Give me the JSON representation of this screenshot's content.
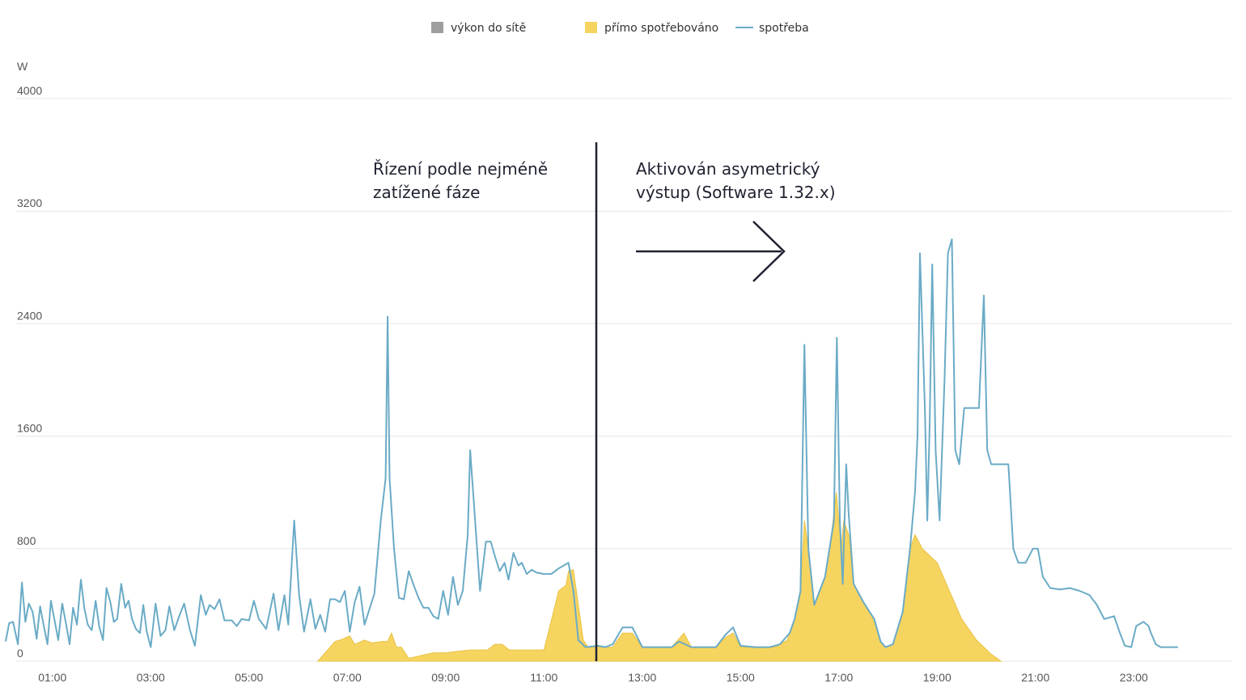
{
  "chart_data": {
    "type": "area",
    "ylabel": "W",
    "ylim": [
      0,
      4000
    ],
    "yticks": [
      0,
      800,
      1600,
      2400,
      3200,
      4000
    ],
    "xlim": [
      0,
      24
    ],
    "xticks": [
      "01:00",
      "03:00",
      "05:00",
      "07:00",
      "09:00",
      "11:00",
      "13:00",
      "15:00",
      "17:00",
      "19:00",
      "21:00",
      "23:00"
    ],
    "grid": true,
    "legend_position": "top-center",
    "legend": [
      {
        "label": "výkon do sítě",
        "marker": "square",
        "color": "#9e9e9e"
      },
      {
        "label": "přímo spotřebováno",
        "marker": "square",
        "color": "#f6d460"
      },
      {
        "label": "spotřeba",
        "marker": "line",
        "color": "#6aabc6"
      }
    ],
    "divider_x": 11.0,
    "annotations": {
      "left": [
        "Řízení podle nejméně",
        "zatížené fáze"
      ],
      "right": [
        "Aktivován asymetrický",
        "výstup (Software 1.32.x)"
      ]
    },
    "series": [
      {
        "name": "spotřeba",
        "kind": "line",
        "color": "#6aabc6",
        "points": [
          [
            0.05,
            140
          ],
          [
            0.12,
            270
          ],
          [
            0.2,
            280
          ],
          [
            0.3,
            120
          ],
          [
            0.38,
            560
          ],
          [
            0.45,
            280
          ],
          [
            0.52,
            410
          ],
          [
            0.6,
            350
          ],
          [
            0.68,
            160
          ],
          [
            0.75,
            390
          ],
          [
            0.82,
            260
          ],
          [
            0.9,
            120
          ],
          [
            0.97,
            430
          ],
          [
            1.05,
            280
          ],
          [
            1.12,
            150
          ],
          [
            1.2,
            410
          ],
          [
            1.28,
            260
          ],
          [
            1.35,
            120
          ],
          [
            1.42,
            380
          ],
          [
            1.5,
            260
          ],
          [
            1.58,
            580
          ],
          [
            1.65,
            380
          ],
          [
            1.72,
            260
          ],
          [
            1.8,
            220
          ],
          [
            1.88,
            430
          ],
          [
            1.95,
            250
          ],
          [
            2.03,
            150
          ],
          [
            2.1,
            520
          ],
          [
            2.18,
            420
          ],
          [
            2.25,
            280
          ],
          [
            2.32,
            300
          ],
          [
            2.4,
            550
          ],
          [
            2.48,
            380
          ],
          [
            2.55,
            430
          ],
          [
            2.62,
            300
          ],
          [
            2.7,
            230
          ],
          [
            2.78,
            200
          ],
          [
            2.85,
            400
          ],
          [
            2.92,
            210
          ],
          [
            3,
            100
          ],
          [
            3.1,
            410
          ],
          [
            3.2,
            180
          ],
          [
            3.3,
            220
          ],
          [
            3.38,
            390
          ],
          [
            3.48,
            220
          ],
          [
            3.58,
            320
          ],
          [
            3.68,
            410
          ],
          [
            3.8,
            220
          ],
          [
            3.9,
            110
          ],
          [
            4.02,
            470
          ],
          [
            4.12,
            330
          ],
          [
            4.2,
            400
          ],
          [
            4.3,
            370
          ],
          [
            4.4,
            440
          ],
          [
            4.5,
            290
          ],
          [
            4.65,
            290
          ],
          [
            4.75,
            250
          ],
          [
            4.85,
            300
          ],
          [
            5,
            290
          ],
          [
            5.1,
            430
          ],
          [
            5.2,
            300
          ],
          [
            5.35,
            230
          ],
          [
            5.5,
            480
          ],
          [
            5.6,
            220
          ],
          [
            5.72,
            470
          ],
          [
            5.8,
            260
          ],
          [
            5.92,
            1000
          ],
          [
            6.02,
            470
          ],
          [
            6.12,
            210
          ],
          [
            6.25,
            440
          ],
          [
            6.35,
            230
          ],
          [
            6.45,
            330
          ],
          [
            6.55,
            210
          ],
          [
            6.65,
            440
          ],
          [
            6.75,
            440
          ],
          [
            6.85,
            420
          ],
          [
            6.95,
            500
          ],
          [
            7.05,
            210
          ],
          [
            7.15,
            420
          ],
          [
            7.25,
            530
          ],
          [
            7.35,
            260
          ],
          [
            7.55,
            480
          ],
          [
            7.68,
            1000
          ],
          [
            7.78,
            1300
          ],
          [
            7.82,
            2450
          ],
          [
            7.86,
            1300
          ],
          [
            7.95,
            800
          ],
          [
            8.05,
            450
          ],
          [
            8.15,
            440
          ],
          [
            8.25,
            640
          ],
          [
            8.35,
            540
          ],
          [
            8.45,
            450
          ],
          [
            8.55,
            380
          ],
          [
            8.65,
            380
          ],
          [
            8.75,
            320
          ],
          [
            8.85,
            300
          ],
          [
            8.95,
            500
          ],
          [
            9.05,
            330
          ],
          [
            9.15,
            600
          ],
          [
            9.25,
            400
          ],
          [
            9.35,
            500
          ],
          [
            9.45,
            900
          ],
          [
            9.5,
            1500
          ],
          [
            9.58,
            1100
          ],
          [
            9.7,
            500
          ],
          [
            9.82,
            850
          ],
          [
            9.92,
            850
          ],
          [
            10,
            750
          ],
          [
            10.1,
            640
          ],
          [
            10.2,
            700
          ],
          [
            10.28,
            580
          ],
          [
            10.38,
            770
          ],
          [
            10.48,
            680
          ],
          [
            10.55,
            700
          ],
          [
            10.65,
            620
          ],
          [
            10.75,
            650
          ],
          [
            10.85,
            630
          ],
          [
            11,
            620
          ],
          [
            11.15,
            620
          ],
          [
            11.3,
            660
          ],
          [
            11.5,
            700
          ],
          [
            11.6,
            500
          ],
          [
            11.7,
            150
          ],
          [
            11.85,
            100
          ],
          [
            12.1,
            110
          ],
          [
            12.25,
            100
          ],
          [
            12.4,
            120
          ],
          [
            12.6,
            240
          ],
          [
            12.8,
            240
          ],
          [
            13,
            100
          ],
          [
            13.3,
            100
          ],
          [
            13.6,
            100
          ],
          [
            13.75,
            140
          ],
          [
            14,
            100
          ],
          [
            14.3,
            100
          ],
          [
            14.5,
            100
          ],
          [
            14.7,
            190
          ],
          [
            14.85,
            240
          ],
          [
            15,
            110
          ],
          [
            15.3,
            100
          ],
          [
            15.6,
            100
          ],
          [
            15.8,
            120
          ],
          [
            16,
            200
          ],
          [
            16.1,
            300
          ],
          [
            16.22,
            500
          ],
          [
            16.3,
            2250
          ],
          [
            16.38,
            800
          ],
          [
            16.5,
            400
          ],
          [
            16.72,
            600
          ],
          [
            16.9,
            1000
          ],
          [
            16.96,
            2300
          ],
          [
            17.02,
            1000
          ],
          [
            17.08,
            550
          ],
          [
            17.15,
            1400
          ],
          [
            17.2,
            1050
          ],
          [
            17.3,
            550
          ],
          [
            17.5,
            420
          ],
          [
            17.72,
            300
          ],
          [
            17.85,
            140
          ],
          [
            17.95,
            100
          ],
          [
            18.1,
            120
          ],
          [
            18.3,
            350
          ],
          [
            18.45,
            800
          ],
          [
            18.55,
            1200
          ],
          [
            18.6,
            1600
          ],
          [
            18.65,
            2900
          ],
          [
            18.75,
            1800
          ],
          [
            18.8,
            1000
          ],
          [
            18.85,
            1700
          ],
          [
            18.9,
            2820
          ],
          [
            18.97,
            1500
          ],
          [
            19.05,
            1000
          ],
          [
            19.15,
            2000
          ],
          [
            19.22,
            2900
          ],
          [
            19.3,
            3000
          ],
          [
            19.37,
            1500
          ],
          [
            19.45,
            1400
          ],
          [
            19.55,
            1800
          ],
          [
            19.7,
            1800
          ],
          [
            19.85,
            1800
          ],
          [
            19.95,
            2600
          ],
          [
            20.02,
            1500
          ],
          [
            20.1,
            1400
          ],
          [
            20.3,
            1400
          ],
          [
            20.45,
            1400
          ],
          [
            20.55,
            800
          ],
          [
            20.65,
            700
          ],
          [
            20.8,
            700
          ],
          [
            20.95,
            800
          ],
          [
            21.05,
            800
          ],
          [
            21.15,
            600
          ],
          [
            21.3,
            520
          ],
          [
            21.5,
            510
          ],
          [
            21.7,
            520
          ],
          [
            21.9,
            500
          ],
          [
            22.1,
            470
          ],
          [
            22.25,
            400
          ],
          [
            22.4,
            300
          ],
          [
            22.6,
            320
          ],
          [
            22.72,
            200
          ],
          [
            22.82,
            110
          ],
          [
            22.95,
            100
          ],
          [
            23.05,
            250
          ],
          [
            23.2,
            280
          ],
          [
            23.3,
            250
          ],
          [
            23.35,
            200
          ],
          [
            23.45,
            120
          ],
          [
            23.55,
            100
          ],
          [
            23.75,
            100
          ],
          [
            23.9,
            100
          ]
        ]
      },
      {
        "name": "přímo spotřebováno",
        "kind": "area",
        "color": "#f6d460",
        "points": [
          [
            6.4,
            0
          ],
          [
            6.55,
            60
          ],
          [
            6.75,
            140
          ],
          [
            6.85,
            150
          ],
          [
            7.05,
            180
          ],
          [
            7.15,
            120
          ],
          [
            7.35,
            150
          ],
          [
            7.5,
            130
          ],
          [
            7.7,
            140
          ],
          [
            7.82,
            140
          ],
          [
            7.9,
            200
          ],
          [
            8.0,
            100
          ],
          [
            8.1,
            100
          ],
          [
            8.25,
            20
          ],
          [
            8.5,
            40
          ],
          [
            8.75,
            60
          ],
          [
            9.0,
            60
          ],
          [
            9.25,
            70
          ],
          [
            9.5,
            80
          ],
          [
            9.85,
            80
          ],
          [
            10.0,
            120
          ],
          [
            10.15,
            120
          ],
          [
            10.3,
            80
          ],
          [
            10.6,
            80
          ],
          [
            11.0,
            80
          ],
          [
            11.3,
            500
          ],
          [
            11.45,
            540
          ],
          [
            11.5,
            640
          ],
          [
            11.6,
            650
          ],
          [
            11.7,
            400
          ],
          [
            11.8,
            150
          ],
          [
            11.9,
            100
          ],
          [
            12.1,
            100
          ],
          [
            12.4,
            100
          ],
          [
            12.6,
            200
          ],
          [
            12.8,
            200
          ],
          [
            13.0,
            100
          ],
          [
            13.6,
            100
          ],
          [
            13.85,
            200
          ],
          [
            14.0,
            100
          ],
          [
            14.5,
            100
          ],
          [
            14.7,
            170
          ],
          [
            14.85,
            200
          ],
          [
            15.0,
            100
          ],
          [
            15.7,
            100
          ],
          [
            15.95,
            150
          ],
          [
            16.1,
            300
          ],
          [
            16.22,
            500
          ],
          [
            16.3,
            1000
          ],
          [
            16.38,
            800
          ],
          [
            16.5,
            400
          ],
          [
            16.72,
            600
          ],
          [
            16.85,
            900
          ],
          [
            16.95,
            1200
          ],
          [
            17.05,
            800
          ],
          [
            17.1,
            1000
          ],
          [
            17.2,
            900
          ],
          [
            17.3,
            550
          ],
          [
            17.5,
            420
          ],
          [
            17.72,
            300
          ],
          [
            17.85,
            140
          ],
          [
            17.95,
            100
          ],
          [
            18.1,
            120
          ],
          [
            18.3,
            350
          ],
          [
            18.45,
            800
          ],
          [
            18.55,
            900
          ],
          [
            18.7,
            800
          ],
          [
            19.0,
            700
          ],
          [
            19.25,
            500
          ],
          [
            19.5,
            300
          ],
          [
            19.8,
            150
          ],
          [
            20.1,
            50
          ],
          [
            20.3,
            0
          ]
        ]
      }
    ]
  }
}
